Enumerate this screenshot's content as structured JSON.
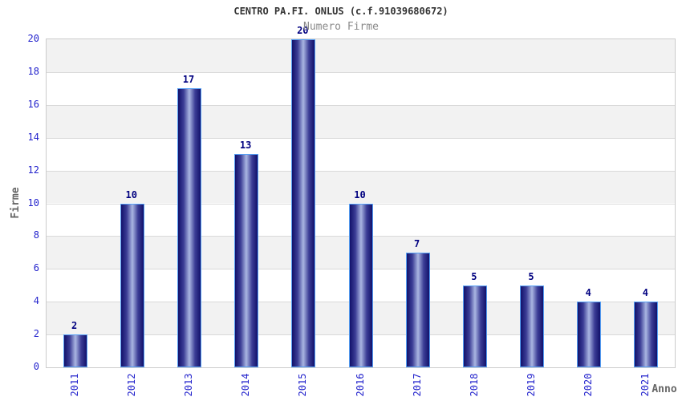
{
  "chart_data": {
    "type": "bar",
    "title": "CENTRO PA.FI. ONLUS (c.f.91039680672)",
    "subtitle": "Numero Firme",
    "xlabel": "Anno",
    "ylabel": "Firme",
    "categories": [
      "2011",
      "2012",
      "2013",
      "2014",
      "2015",
      "2016",
      "2017",
      "2018",
      "2019",
      "2020",
      "2021"
    ],
    "values": [
      2,
      10,
      17,
      13,
      20,
      10,
      7,
      5,
      5,
      4,
      4
    ],
    "ylim": [
      0,
      20
    ],
    "ytick_step": 2,
    "yticks": [
      0,
      2,
      4,
      6,
      8,
      10,
      12,
      14,
      16,
      18,
      20
    ],
    "grid": "horizontal-lines-with-alternating-bands",
    "legend": "none",
    "bar_value_labels": true
  },
  "colors": {
    "axis_label_blue": "#2222cc",
    "value_label_navy": "#000080",
    "title_gray": "#333333",
    "subtitle_gray": "#8a8a8a",
    "axis_title_gray": "#666666",
    "band_gray": "#f2f2f2",
    "band_white": "#ffffff",
    "grid_line": "#d9d9d9",
    "plot_border": "#cccccc",
    "bar_dark": "#12116b",
    "bar_mid": "#3c3e96",
    "bar_light": "#aab6e2",
    "bar_border": "#55a0f5",
    "background": "#ffffff"
  }
}
